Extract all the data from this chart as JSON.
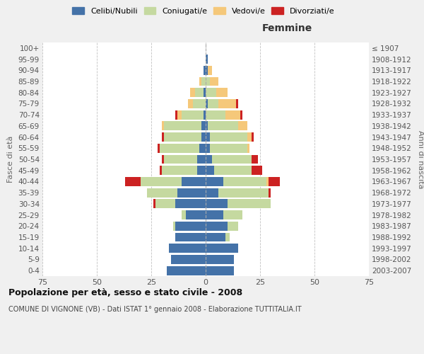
{
  "age_groups": [
    "0-4",
    "5-9",
    "10-14",
    "15-19",
    "20-24",
    "25-29",
    "30-34",
    "35-39",
    "40-44",
    "45-49",
    "50-54",
    "55-59",
    "60-64",
    "65-69",
    "70-74",
    "75-79",
    "80-84",
    "85-89",
    "90-94",
    "95-99",
    "100+"
  ],
  "birth_years": [
    "2003-2007",
    "1998-2002",
    "1993-1997",
    "1988-1992",
    "1983-1987",
    "1978-1982",
    "1973-1977",
    "1968-1972",
    "1963-1967",
    "1958-1962",
    "1953-1957",
    "1948-1952",
    "1943-1947",
    "1938-1942",
    "1933-1937",
    "1928-1932",
    "1923-1927",
    "1918-1922",
    "1913-1917",
    "1908-1912",
    "≤ 1907"
  ],
  "male": {
    "celibe": [
      18,
      16,
      17,
      14,
      14,
      9,
      14,
      13,
      11,
      4,
      4,
      3,
      2,
      2,
      1,
      0,
      1,
      0,
      1,
      0,
      0
    ],
    "coniugato": [
      0,
      0,
      0,
      0,
      1,
      2,
      9,
      14,
      19,
      16,
      15,
      18,
      17,
      17,
      10,
      6,
      4,
      2,
      0,
      0,
      0
    ],
    "vedovo": [
      0,
      0,
      0,
      0,
      0,
      0,
      0,
      0,
      0,
      0,
      0,
      0,
      0,
      1,
      2,
      2,
      2,
      1,
      0,
      0,
      0
    ],
    "divorziato": [
      0,
      0,
      0,
      0,
      0,
      0,
      1,
      0,
      7,
      1,
      1,
      1,
      1,
      0,
      1,
      0,
      0,
      0,
      0,
      0,
      0
    ]
  },
  "female": {
    "nubile": [
      13,
      13,
      15,
      9,
      10,
      8,
      10,
      6,
      8,
      4,
      3,
      2,
      2,
      1,
      0,
      1,
      0,
      0,
      1,
      1,
      0
    ],
    "coniugata": [
      0,
      0,
      0,
      2,
      5,
      9,
      20,
      23,
      20,
      17,
      18,
      17,
      17,
      14,
      9,
      5,
      5,
      2,
      0,
      0,
      0
    ],
    "vedova": [
      0,
      0,
      0,
      0,
      0,
      0,
      0,
      0,
      1,
      0,
      0,
      1,
      2,
      4,
      7,
      8,
      5,
      4,
      2,
      0,
      0
    ],
    "divorziata": [
      0,
      0,
      0,
      0,
      0,
      0,
      0,
      1,
      5,
      5,
      3,
      0,
      1,
      0,
      1,
      1,
      0,
      0,
      0,
      0,
      0
    ]
  },
  "colors": {
    "celibe": "#4472a8",
    "coniugato": "#c5d9a0",
    "vedovo": "#f5c87a",
    "divorziato": "#cc2222"
  },
  "xlim": 75,
  "title": "Popolazione per età, sesso e stato civile - 2008",
  "subtitle": "COMUNE DI VIGNONE (VB) - Dati ISTAT 1° gennaio 2008 - Elaborazione TUTTITALIA.IT",
  "xlabel_right": "Femmine",
  "ylabel_left": "Fasce di età",
  "ylabel_right": "Anni di nascita",
  "legend_labels": [
    "Celibi/Nubili",
    "Coniugati/e",
    "Vedovi/e",
    "Divorziati/e"
  ],
  "bg_color": "#f0f0f0",
  "plot_bg_color": "#ffffff",
  "grid_color": "#bbbbbb"
}
